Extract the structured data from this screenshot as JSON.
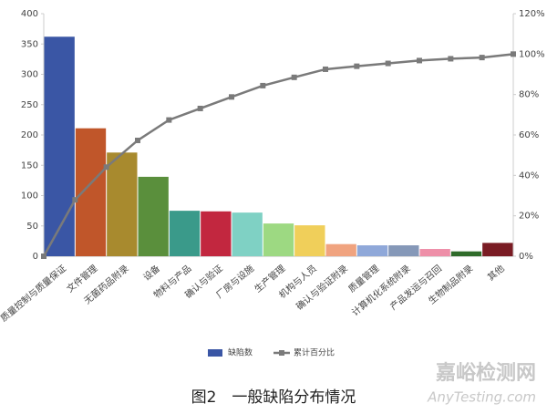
{
  "chart_data": {
    "type": "pareto",
    "categories": [
      "质量控制与质量保证",
      "文件管理",
      "无菌药品附录",
      "设备",
      "物料与产品",
      "确认与验证",
      "厂房与设施",
      "生产管理",
      "机构与人员",
      "确认与验证附录",
      "质量管理",
      "计算机化系统附录",
      "产品发运与召回",
      "生物制品附录",
      "其他"
    ],
    "series": [
      {
        "name": "缺陷数",
        "type": "bar",
        "values": [
          362,
          211,
          171,
          131,
          75,
          74,
          72,
          54,
          51,
          20,
          18,
          18,
          12,
          8,
          22
        ],
        "colors": [
          "#3a56a5",
          "#c0562a",
          "#a88a2e",
          "#5a8f3c",
          "#3a9a8a",
          "#c2273f",
          "#7fd1c4",
          "#9dd982",
          "#f0cf5a",
          "#f0a37f",
          "#8fa8d9",
          "#8598b8",
          "#ee8fa8",
          "#2f6b2a",
          "#7a1c24"
        ]
      },
      {
        "name": "累计百分比",
        "type": "line",
        "axis": "y2",
        "color": "#7a7a7a",
        "values": [
          27.9,
          44.1,
          57.3,
          67.4,
          73.1,
          78.8,
          84.4,
          88.5,
          92.5,
          94.0,
          95.4,
          96.8,
          97.7,
          98.3,
          100
        ]
      }
    ],
    "ylim": [
      0,
      400
    ],
    "yticks": [
      0,
      50,
      100,
      150,
      200,
      250,
      300,
      350,
      400
    ],
    "y2lim": [
      0,
      120
    ],
    "y2ticks": [
      {
        "value": 0,
        "label": "0%"
      },
      {
        "value": 20,
        "label": "20%"
      },
      {
        "value": 40,
        "label": "40%"
      },
      {
        "value": 60,
        "label": "60%"
      },
      {
        "value": 80,
        "label": "80%"
      },
      {
        "value": 100,
        "label": "100%"
      },
      {
        "value": 120,
        "label": "120%"
      }
    ],
    "grid": false,
    "legend": "bottom",
    "caption": "图2　一般缺陷分布情况"
  },
  "watermark": {
    "title": "嘉峪检测网",
    "url": "AnyTesting.com"
  }
}
